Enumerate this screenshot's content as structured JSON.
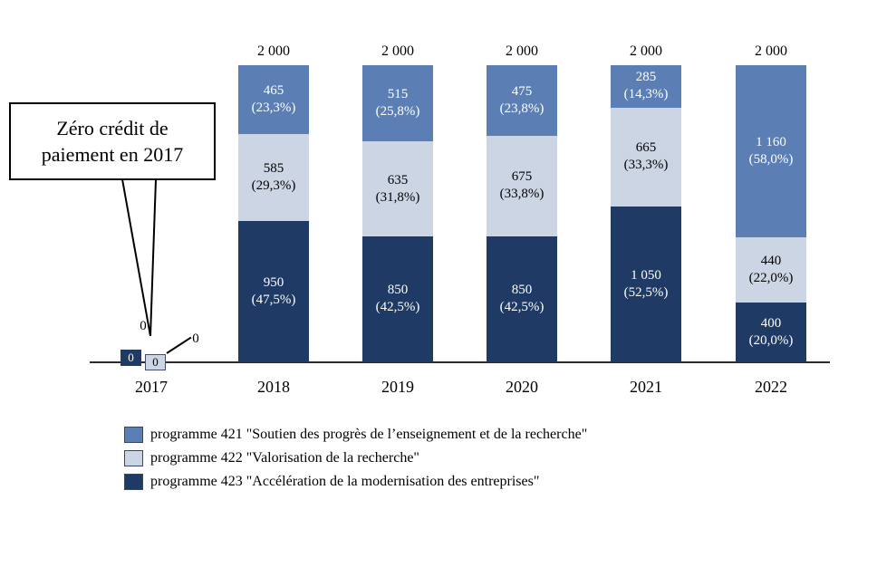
{
  "callout": {
    "line1": "Zéro crédit de",
    "line2": "paiement en 2017"
  },
  "chart_data": {
    "type": "bar",
    "stacked": true,
    "categories": [
      "2017",
      "2018",
      "2019",
      "2020",
      "2021",
      "2022"
    ],
    "totals_labels": [
      "",
      "2 000",
      "2 000",
      "2 000",
      "2 000",
      "2 000"
    ],
    "ylim": [
      0,
      2000
    ],
    "grid": false,
    "legend_position": "bottom",
    "series": [
      {
        "key": "programme-423",
        "name": "programme 423 \"Accélération de la modernisation des entreprises\"",
        "color": "#1f3a64",
        "text_color": "#ffffff",
        "values": [
          0,
          950,
          850,
          850,
          1050,
          400
        ],
        "value_labels": [
          "0",
          "950",
          "850",
          "850",
          "1 050",
          "400"
        ],
        "pct_labels": [
          "",
          "(47,5%)",
          "(42,5%)",
          "(42,5%)",
          "(52,5%)",
          "(20,0%)"
        ]
      },
      {
        "key": "programme-422",
        "name": "programme 422 \"Valorisation de la recherche\"",
        "color": "#ccd5e3",
        "text_color": "#000000",
        "values": [
          0,
          585,
          635,
          675,
          665,
          440
        ],
        "value_labels": [
          "0",
          "585",
          "635",
          "675",
          "665",
          "440"
        ],
        "pct_labels": [
          "",
          "(29,3%)",
          "(31,8%)",
          "(33,8%)",
          "(33,3%)",
          "(22,0%)"
        ]
      },
      {
        "key": "programme-421",
        "name": "programme 421 \"Soutien des progrès de l’enseignement et de la recherche\"",
        "color": "#5b7fb4",
        "text_color": "#ffffff",
        "values": [
          0,
          465,
          515,
          475,
          285,
          1160
        ],
        "value_labels": [
          "0",
          "465",
          "515",
          "475",
          "285",
          "1 160"
        ],
        "pct_labels": [
          "",
          "(23,3%)",
          "(25,8%)",
          "(23,8%)",
          "(14,3%)",
          "(58,0%)"
        ]
      }
    ]
  },
  "zeros_2017": {
    "top_label": "0",
    "dark_box_label": "0",
    "light_box_label": "0",
    "slash_label": "0"
  },
  "legend": {
    "items": [
      {
        "color": "#5b7fb4",
        "label": "programme 421 \"Soutien des progrès de l’enseignement et de la recherche\""
      },
      {
        "color": "#ccd5e3",
        "label": "programme 422 \"Valorisation de la recherche\""
      },
      {
        "color": "#1f3a64",
        "label": "programme 423 \"Accélération de la modernisation des entreprises\""
      }
    ]
  }
}
